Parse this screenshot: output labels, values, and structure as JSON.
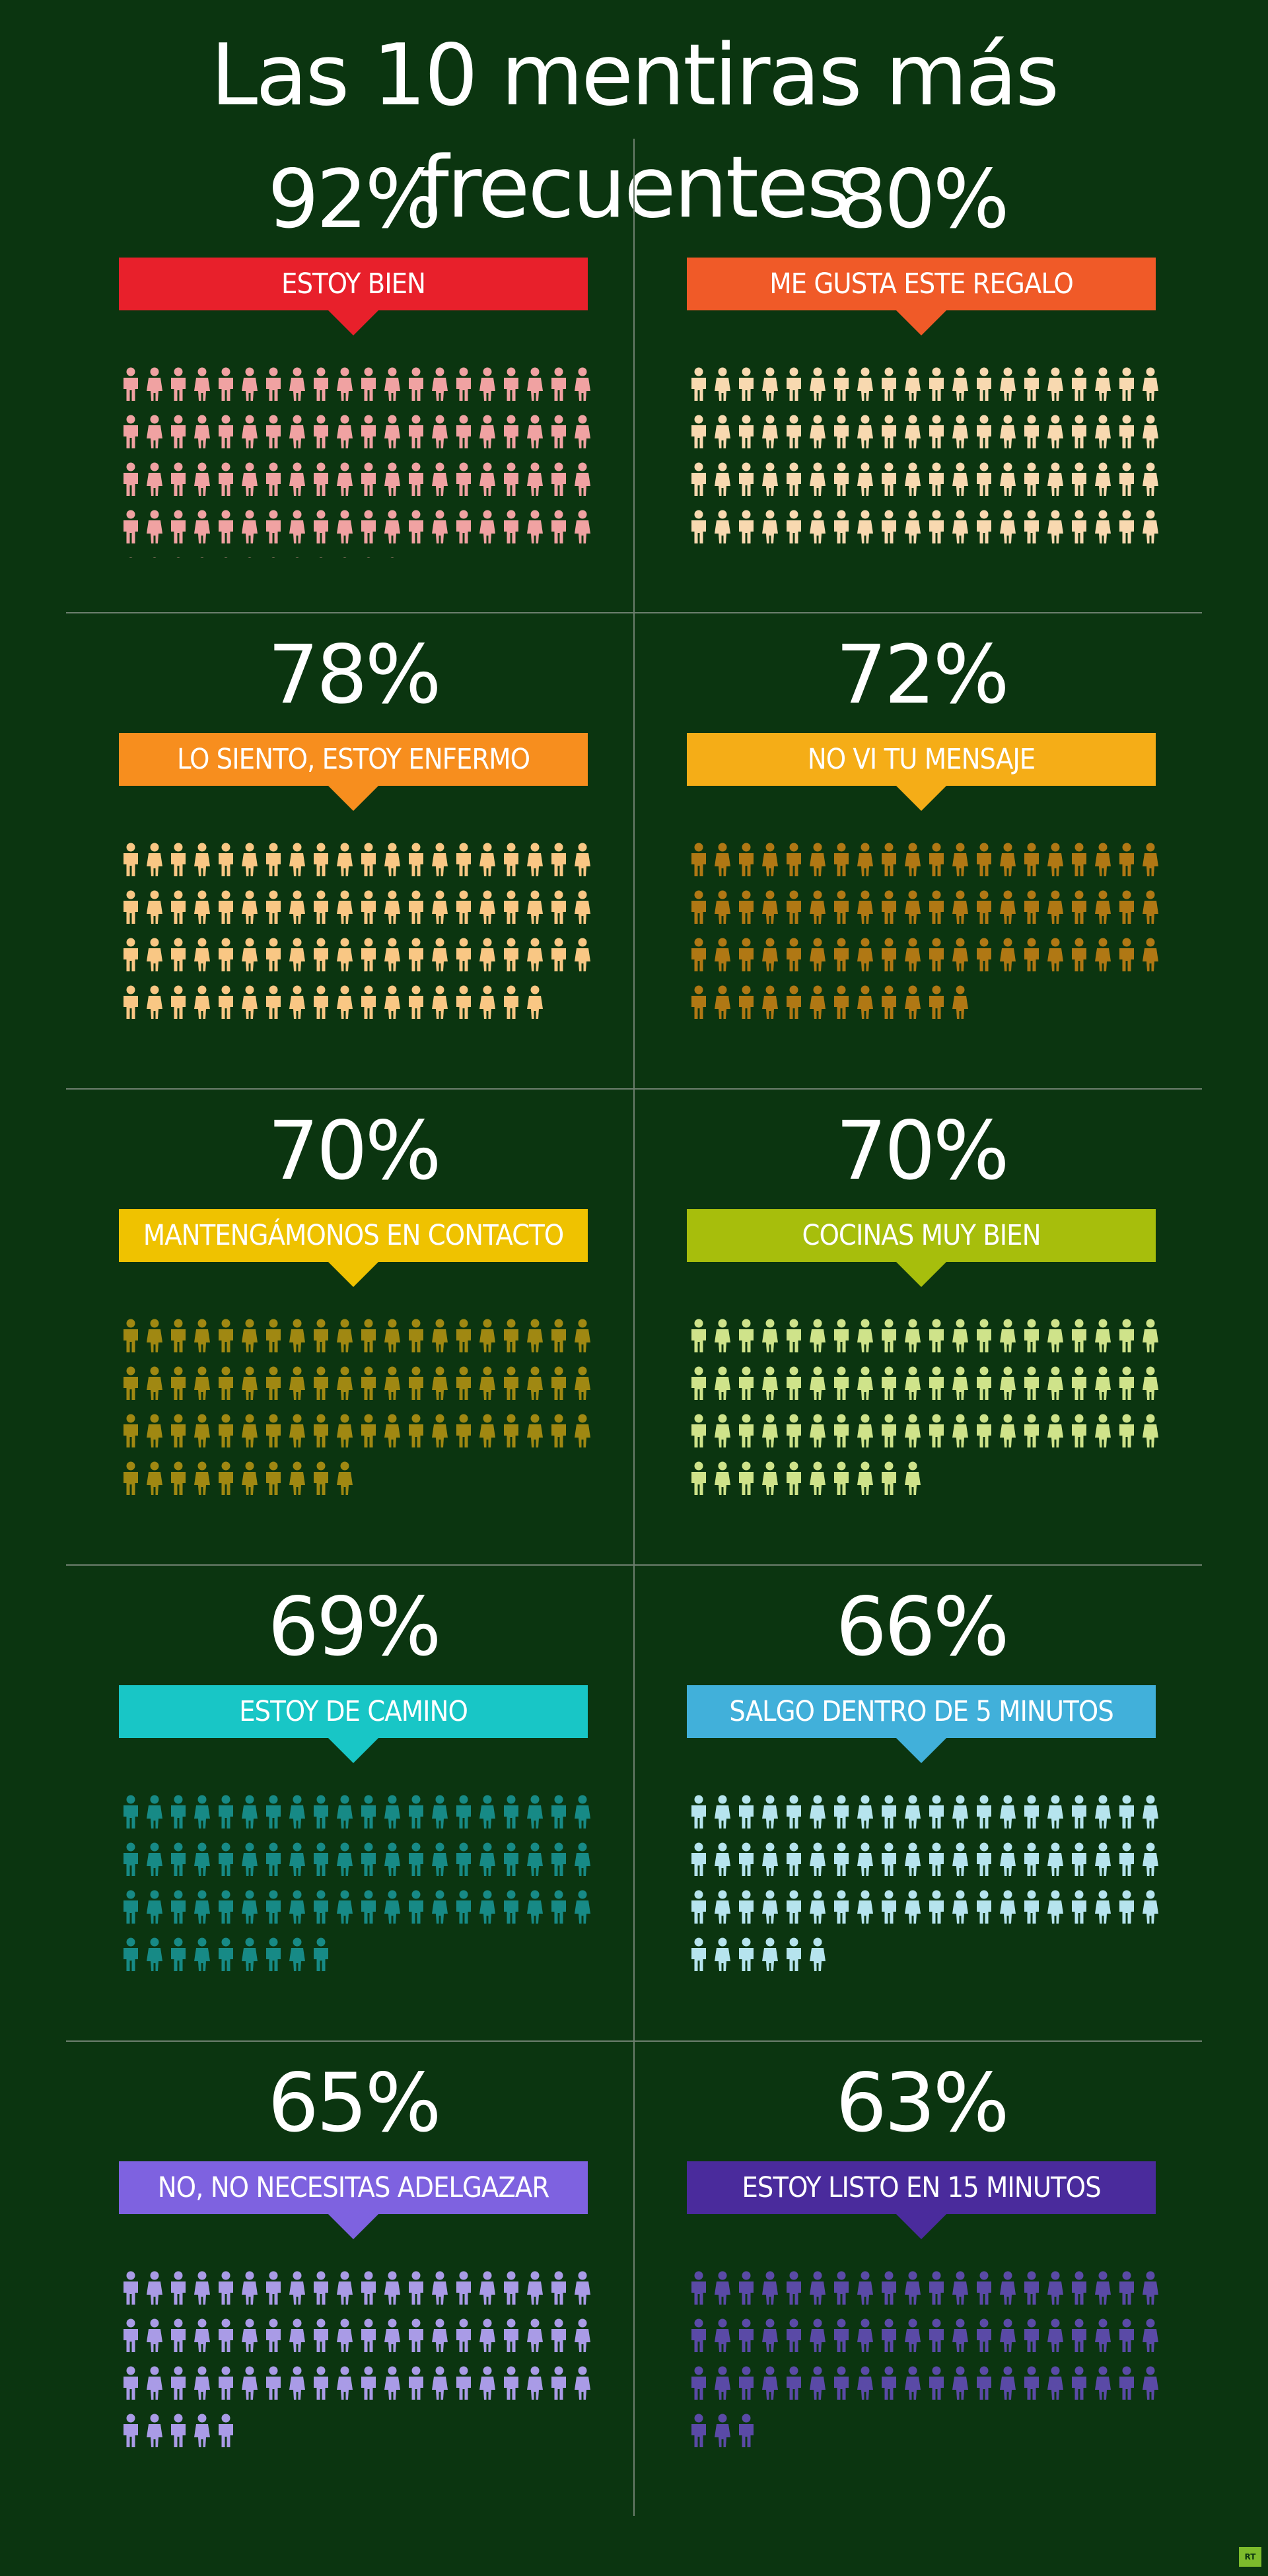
{
  "title": "Las 10 mentiras más frecuentes",
  "logo_text": "RT",
  "chart_data": {
    "type": "pictogram",
    "unit": "1 figure = 1%",
    "total_per_panel": 100,
    "items": [
      {
        "percent": "92%",
        "value": 92,
        "label": "ESTOY BIEN",
        "banner_color": "#e8202b",
        "icon_color": "#f0a2a2"
      },
      {
        "percent": "80%",
        "value": 80,
        "label": "ME GUSTA ESTE REGALO",
        "banner_color": "#f05a28",
        "icon_color": "#f8d9b0"
      },
      {
        "percent": "78%",
        "value": 78,
        "label": "LO SIENTO, ESTOY ENFERMO",
        "banner_color": "#f78e1e",
        "icon_color": "#f9c784"
      },
      {
        "percent": "72%",
        "value": 72,
        "label": "NO VI TU MENSAJE",
        "banner_color": "#f5ad17",
        "icon_color": "#b07814"
      },
      {
        "percent": "70%",
        "value": 70,
        "label": "MANTENGÁMONOS EN CONTACTO",
        "banner_color": "#efc200",
        "icon_color": "#a08812"
      },
      {
        "percent": "70%",
        "value": 70,
        "label": "COCINAS MUY BIEN",
        "banner_color": "#a7be0c",
        "icon_color": "#cfe38a"
      },
      {
        "percent": "69%",
        "value": 69,
        "label": "ESTOY DE CAMINO",
        "banner_color": "#18c6c6",
        "icon_color": "#178a86"
      },
      {
        "percent": "66%",
        "value": 66,
        "label": "SALGO DENTRO DE 5 MINUTOS",
        "banner_color": "#41b0da",
        "icon_color": "#b6e4ee"
      },
      {
        "percent": "65%",
        "value": 65,
        "label": "NO, NO NECESITAS ADELGAZAR",
        "banner_color": "#7e62e0",
        "icon_color": "#a99be6"
      },
      {
        "percent": "63%",
        "value": 63,
        "label": "ESTOY LISTO EN 15 MINUTOS",
        "banner_color": "#4a2b9c",
        "icon_color": "#5a4aa6"
      }
    ]
  }
}
